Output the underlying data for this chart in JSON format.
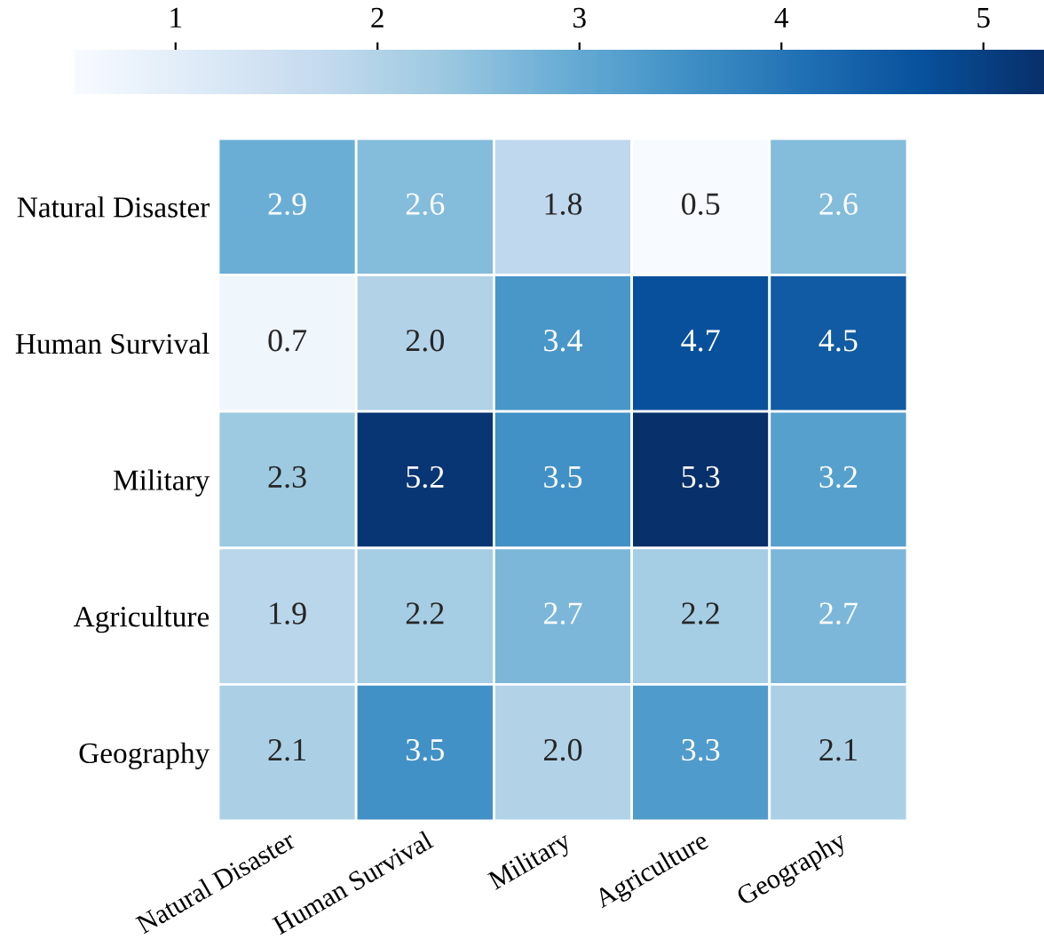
{
  "chart_data": {
    "type": "heatmap",
    "categories": [
      "Natural Disaster",
      "Human Survival",
      "Military",
      "Agriculture",
      "Geography"
    ],
    "y_categories": [
      "Natural Disaster",
      "Human Survival",
      "Military",
      "Agriculture",
      "Geography"
    ],
    "cells": [
      [
        2.9,
        2.6,
        1.8,
        0.5,
        2.6
      ],
      [
        0.7,
        2.0,
        3.4,
        4.7,
        4.5
      ],
      [
        2.3,
        5.2,
        3.5,
        5.3,
        3.2
      ],
      [
        1.9,
        2.2,
        2.7,
        2.2,
        2.7
      ],
      [
        2.1,
        3.5,
        2.0,
        3.3,
        2.1
      ]
    ],
    "cell_labels": [
      [
        "2.9",
        "2.6",
        "1.8",
        "0.5",
        "2.6"
      ],
      [
        "0.7",
        "2.0",
        "3.4",
        "4.7",
        "4.5"
      ],
      [
        "2.3",
        "5.2",
        "3.5",
        "5.3",
        "3.2"
      ],
      [
        "1.9",
        "2.2",
        "2.7",
        "2.2",
        "2.7"
      ],
      [
        "2.1",
        "3.5",
        "2.0",
        "3.3",
        "2.1"
      ]
    ],
    "clim": [
      0.5,
      5.3
    ],
    "cticks": [
      1,
      2,
      3,
      4,
      5
    ],
    "data_labels": true
  }
}
